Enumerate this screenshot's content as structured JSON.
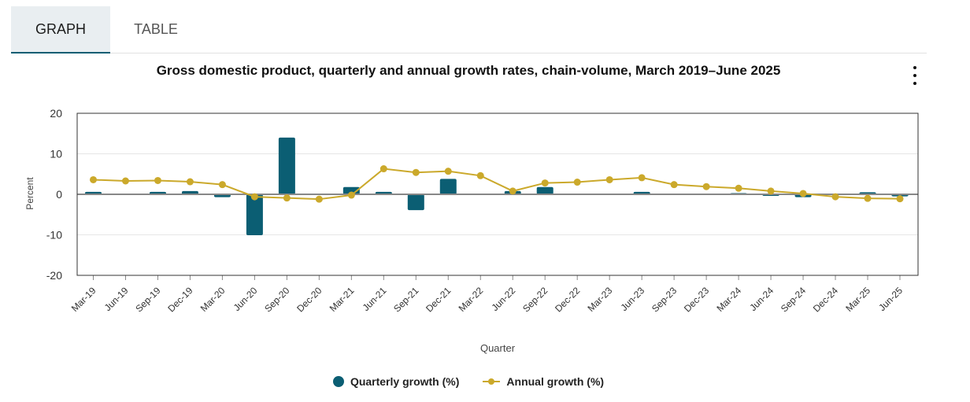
{
  "tabs": {
    "graph": "GRAPH",
    "table": "TABLE"
  },
  "menu_icon": "kebab-menu-icon",
  "colors": {
    "quarterly": "#0b5e73",
    "annual": "#cba92b",
    "zero_line": "#888888",
    "grid": "#e6e6e6"
  },
  "chart_data": {
    "type": "bar",
    "title": "Gross domestic product, quarterly and annual growth rates, chain-volume, March 2019–June 2025",
    "xlabel": "Quarter",
    "ylabel": "Percent",
    "ylim": [
      -20,
      20
    ],
    "yticks": [
      20,
      10,
      0,
      -10,
      -20
    ],
    "ytick_labels": [
      "20",
      "10",
      "0",
      "-10",
      "-20"
    ],
    "grid": true,
    "legend_position": "bottom",
    "categories": [
      "Mar-19",
      "Jun-19",
      "Sep-19",
      "Dec-19",
      "Mar-20",
      "Jun-20",
      "Sep-20",
      "Dec-20",
      "Mar-21",
      "Jun-21",
      "Sep-21",
      "Dec-21",
      "Mar-22",
      "Jun-22",
      "Sep-22",
      "Dec-22",
      "Mar-23",
      "Jun-23",
      "Sep-23",
      "Dec-23",
      "Mar-24",
      "Jun-24",
      "Sep-24",
      "Dec-24",
      "Mar-25",
      "Jun-25"
    ],
    "series": [
      {
        "name": "Quarterly growth (%)",
        "type": "bar",
        "values": [
          0.6,
          0.1,
          0.6,
          0.8,
          -0.7,
          -10.1,
          14.0,
          0.2,
          1.8,
          0.6,
          -3.9,
          3.8,
          0.2,
          0.8,
          1.8,
          0.2,
          0.1,
          0.6,
          0.2,
          0.2,
          0.3,
          -0.4,
          -0.7,
          0.2,
          0.5,
          -0.5
        ]
      },
      {
        "name": "Annual growth (%)",
        "type": "line",
        "values": [
          3.6,
          3.3,
          3.4,
          3.1,
          2.4,
          -0.6,
          -0.9,
          -1.2,
          -0.2,
          6.3,
          5.4,
          5.7,
          4.6,
          0.8,
          2.8,
          3.0,
          3.6,
          4.1,
          2.4,
          1.9,
          1.5,
          0.8,
          0.2,
          -0.6,
          -1.0,
          -1.1
        ]
      }
    ]
  }
}
